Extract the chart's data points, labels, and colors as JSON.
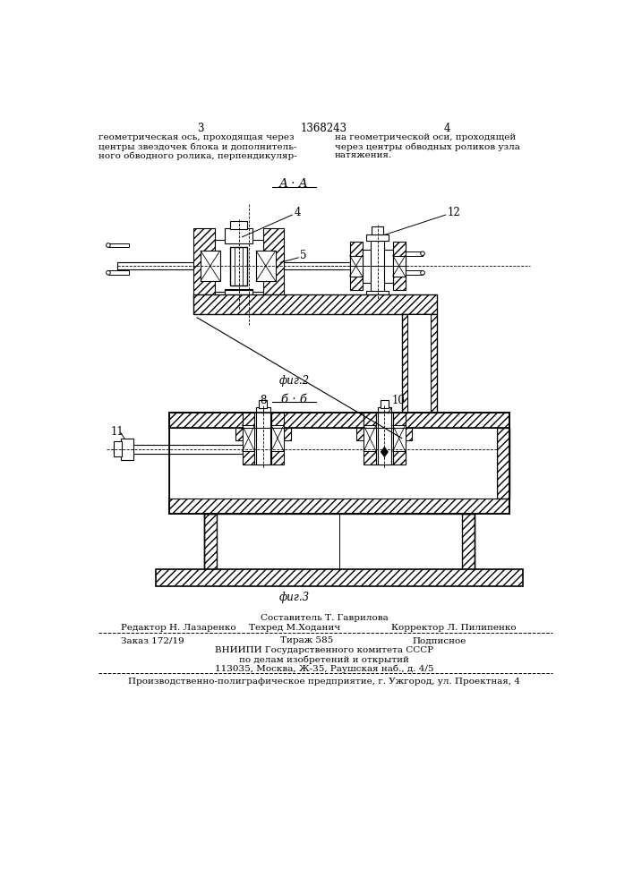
{
  "page_number_left": "3",
  "page_number_center": "1368243",
  "page_number_right": "4",
  "header_text_left": "геометрическая ось, проходящая через\nцентры звездочек блока и дополнитель-\nного обводного ролика, перпендикуляр-",
  "header_text_right": "на геометрической оси, проходящей\nчерез центры обводных роликов узла\nнатяжения.",
  "section_label_AA": "А · А",
  "fig2_label": "фиг.2",
  "section_label_BB": "б · б",
  "fig3_label": "фиг.3",
  "num_4": "4",
  "num_5": "5",
  "num_12": "12",
  "num_8": "8",
  "num_10": "10",
  "num_11": "11",
  "editor_line": "Составитель Т. Гаврилова",
  "editor_full_left": "Редактор Н. Лазаренко",
  "editor_full_mid": "Техред М.Ходанич",
  "editor_full_right": "Корректор Л. Пилипенко",
  "order_left": "Заказ 172/19",
  "order_mid": "Тираж 585",
  "order_right": "Подписное",
  "vniiipi_line": "ВНИИПИ Государственного комитета СССР",
  "po_delam_line": "по делам изобретений и открытий",
  "address_line": "113035, Москва, Ж-35, Раушская наб., д. 4/5",
  "factory_line": "Производственно-полиграфическое предприятие, г. Ужгород, ул. Проектная, 4",
  "bg_color": "#ffffff",
  "text_color": "#000000"
}
